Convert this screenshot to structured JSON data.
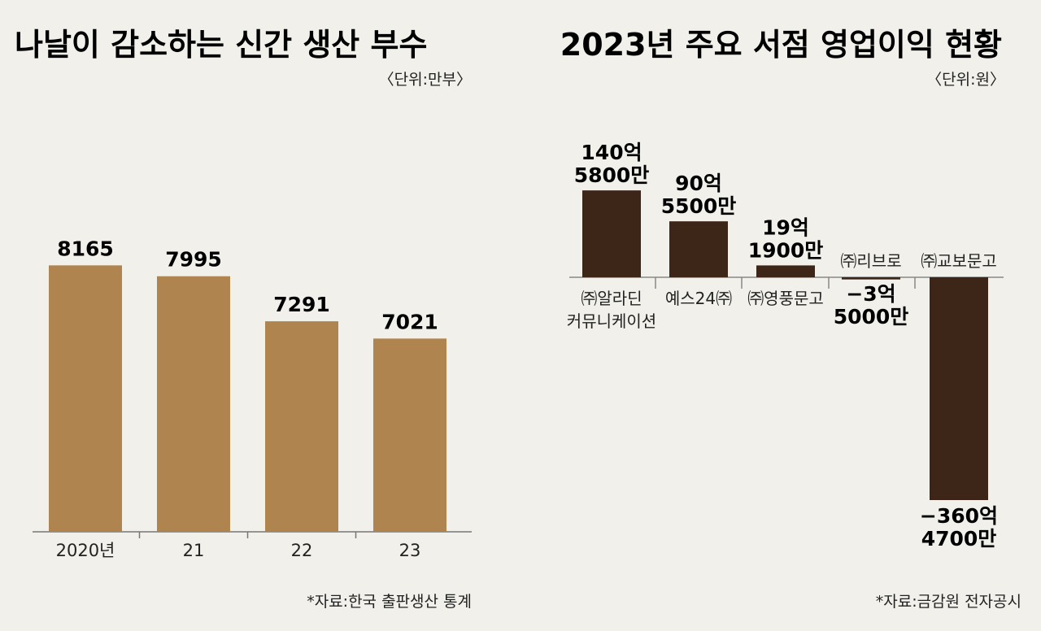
{
  "left_chart": {
    "title": "나날이 감소하는 신간 생산 부수",
    "unit": "〈단위:만부〉",
    "source": "*자료:한국 출판생산 통계",
    "bar_color": "#b0844e"
  },
  "right_chart": {
    "title": "2023년 주요 서점 영업이익 현황",
    "unit": "〈단위:원〉",
    "source": "*자료:금감원 전자공시",
    "bar_color": "#3d2618"
  },
  "chart_data": [
    {
      "type": "bar",
      "title": "나날이 감소하는 신간 생산 부수",
      "unit": "만부",
      "categories": [
        "2020년",
        "21",
        "22",
        "23"
      ],
      "values": [
        8165,
        7995,
        7291,
        7021
      ],
      "value_labels": [
        "8165",
        "7995",
        "7291",
        "7021"
      ],
      "ylim": [
        4000,
        8500
      ],
      "source": "*자료:한국 출판생산 통계"
    },
    {
      "type": "bar",
      "title": "2023년 주요 서점 영업이익 현황",
      "unit": "원",
      "categories": [
        [
          "㈜알라딘",
          "커뮤니케이션"
        ],
        [
          "예스24㈜"
        ],
        [
          "㈜영풍문고"
        ],
        [
          "㈜리브로"
        ],
        [
          "㈜교보문고"
        ]
      ],
      "values": [
        14058000000,
        9055000000,
        1919000000,
        -350000000,
        -36047000000
      ],
      "value_labels": [
        [
          "140억",
          "5800만"
        ],
        [
          "90억",
          "5500만"
        ],
        [
          "19억",
          "1900만"
        ],
        [
          "−3억",
          "5000만"
        ],
        [
          "−360억",
          "4700만"
        ]
      ],
      "source": "*자료:금감원 전자공시"
    }
  ]
}
